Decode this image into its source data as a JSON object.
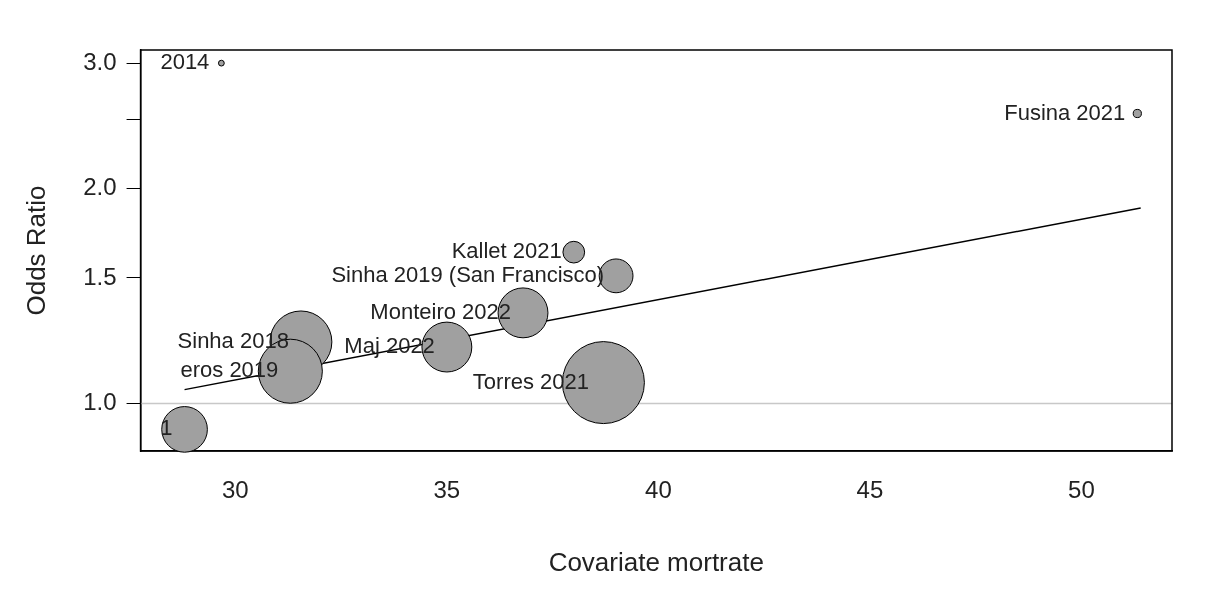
{
  "chart_data": {
    "type": "bubble",
    "xlabel": "Covariate mortrate",
    "ylabel": "Odds Ratio",
    "log": "y",
    "xlim": [
      27.76,
      52.14
    ],
    "xticks": [
      30,
      35,
      40,
      45,
      50
    ],
    "ylim": [
      0.858,
      3.13
    ],
    "yticks": [
      {
        "value": 1,
        "label": "1.0"
      },
      1.5,
      {
        "value": 2,
        "label": "2.0"
      },
      {
        "value": 2.5,
        "label": null
      },
      {
        "value": 3,
        "label": "3.0"
      }
    ],
    "grid": false,
    "legend": false,
    "marker": "circle",
    "series": [
      {
        "color": "#a0a0a0",
        "x": [
          29.67,
          51.32,
          38.0,
          39.0,
          36.8,
          35.0,
          38.7,
          31.55,
          31.3,
          28.8
        ],
        "values": [
          3.0,
          2.55,
          1.63,
          1.51,
          1.34,
          1.2,
          1.07,
          1.22,
          1.11,
          0.92
        ],
        "sizes": [
          0.005,
          0.01,
          0.07,
          0.17,
          0.37,
          0.37,
          1,
          0.57,
          0.61,
          0.31
        ]
      },
      {
        "type": "line",
        "color": "#000000",
        "marker": "none",
        "x": [
          28.8,
          51.4
        ],
        "values": [
          1.046,
          1.88
        ]
      }
    ],
    "ref_lines": [
      {
        "axis": "y",
        "value": 1.0,
        "color": "#c8c8c8"
      }
    ],
    "annotations": [
      {
        "text": "2014",
        "x": 29.67,
        "y": 3.0
      },
      {
        "text": "Fusina 2021",
        "x": 51.32,
        "y": 2.55
      },
      {
        "text": "Kallet 2021",
        "x": 38.0,
        "y": 1.63
      },
      {
        "text": "Sinha 2019 (San Francisco)",
        "x": 39.0,
        "y": 1.51
      },
      {
        "text": "Monteiro 2022",
        "x": 36.8,
        "y": 1.34
      },
      {
        "text": "Maj 2022",
        "x": 35.0,
        "y": 1.2
      },
      {
        "text": "Torres 2021",
        "x": 38.7,
        "y": 1.07
      },
      {
        "text": "Sinha 2018",
        "x": 31.55,
        "y": 1.22
      },
      {
        "text": "eros 2019",
        "x": 31.3,
        "y": 1.11
      },
      {
        "text": "1",
        "x": 28.8,
        "y": 0.92
      }
    ]
  }
}
